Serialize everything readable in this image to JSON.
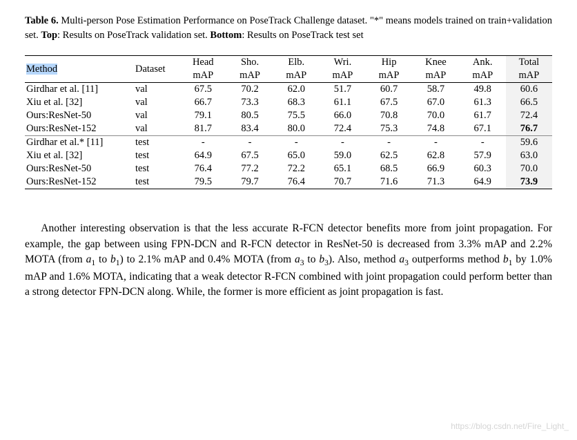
{
  "caption": {
    "label": "Table 6.",
    "text_a": " Multi-person Pose Estimation Performance on PoseTrack Challenge dataset. \"*\" means models trained on train+validation set. ",
    "top_label": "Top",
    "top_text": ": Results on PoseTrack validation set. ",
    "bottom_label": "Bottom",
    "bottom_text": ": Results on PoseTrack test set"
  },
  "table": {
    "header1": {
      "method": "Method",
      "dataset": "Dataset",
      "c": [
        "Head",
        "Sho.",
        "Elb.",
        "Wri.",
        "Hip",
        "Knee",
        "Ank.",
        "Total"
      ]
    },
    "header2": {
      "c": [
        "mAP",
        "mAP",
        "mAP",
        "mAP",
        "mAP",
        "mAP",
        "mAP",
        "mAP"
      ]
    },
    "rows_top": [
      {
        "method": "Girdhar et al. [11]",
        "dataset": "val",
        "c": [
          "67.5",
          "70.2",
          "62.0",
          "51.7",
          "60.7",
          "58.7",
          "49.8",
          "60.6"
        ],
        "bold_total": false
      },
      {
        "method": "Xiu et al. [32]",
        "dataset": "val",
        "c": [
          "66.7",
          "73.3",
          "68.3",
          "61.1",
          "67.5",
          "67.0",
          "61.3",
          "66.5"
        ],
        "bold_total": false
      },
      {
        "method": "Ours:ResNet-50",
        "dataset": "val",
        "c": [
          "79.1",
          "80.5",
          "75.5",
          "66.0",
          "70.8",
          "70.0",
          "61.7",
          "72.4"
        ],
        "bold_total": false
      },
      {
        "method": "Ours:ResNet-152",
        "dataset": "val",
        "c": [
          "81.7",
          "83.4",
          "80.0",
          "72.4",
          "75.3",
          "74.8",
          "67.1",
          "76.7"
        ],
        "bold_total": true
      }
    ],
    "rows_bot": [
      {
        "method": "Girdhar et al.* [11]",
        "dataset": "test",
        "c": [
          "-",
          "-",
          "-",
          "-",
          "-",
          "-",
          "-",
          "59.6"
        ],
        "bold_total": false
      },
      {
        "method": "Xiu et al. [32]",
        "dataset": "test",
        "c": [
          "64.9",
          "67.5",
          "65.0",
          "59.0",
          "62.5",
          "62.8",
          "57.9",
          "63.0"
        ],
        "bold_total": false
      },
      {
        "method": "Ours:ResNet-50",
        "dataset": "test",
        "c": [
          "76.4",
          "77.2",
          "72.2",
          "65.1",
          "68.5",
          "66.9",
          "60.3",
          "70.0"
        ],
        "bold_total": false
      },
      {
        "method": "Ours:ResNet-152",
        "dataset": "test",
        "c": [
          "79.5",
          "79.7",
          "76.4",
          "70.7",
          "71.6",
          "71.3",
          "64.9",
          "73.9"
        ],
        "bold_total": true
      }
    ],
    "colors": {
      "total_bg": "#f2f2f2",
      "rule_color": "#000000",
      "thin_rule_color": "#8a8a8a",
      "selection_bg": "#b6d7fb"
    }
  },
  "paragraph": {
    "t1": "Another interesting observation is that the less accurate R-FCN detector benefits more from joint propagation. For example, the gap between using FPN-DCN and R-FCN detector in ResNet-50 is decreased from 3.3% mAP and 2.2% MOTA (from ",
    "a1": "a",
    "s1": "1",
    "t2": " to ",
    "b1": "b",
    "s2": "1",
    "t3": ") to 2.1% mAP and 0.4% MOTA (from ",
    "a3": "a",
    "s3": "3",
    "t4": " to ",
    "b3": "b",
    "s4": "3",
    "t5": "). Also, method ",
    "a3b": "a",
    "s5": "3",
    "t6": " outperforms method ",
    "b1b": "b",
    "s6": "1",
    "t7": " by 1.0% mAP and 1.6% MOTA, indicating that a weak detector R-FCN combined with joint propagation could perform better than a strong detector FPN-DCN along. While, the former is more efficient as joint propagation is fast."
  },
  "watermark": "https://blog.csdn.net/Fire_Light_"
}
